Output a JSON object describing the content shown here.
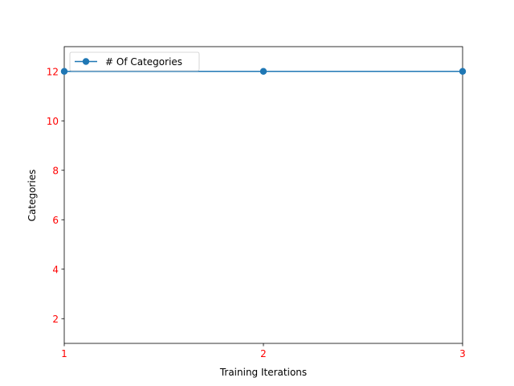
{
  "chart_data": {
    "type": "line",
    "title": "",
    "xlabel": "Training Iterations",
    "ylabel": "Categories",
    "x": [
      1,
      2,
      3
    ],
    "series": [
      {
        "name": "# Of Categories",
        "values": [
          12,
          12,
          12
        ],
        "color": "#1f77b4",
        "marker": "circle"
      }
    ],
    "xlim": [
      1,
      3
    ],
    "ylim": [
      1,
      13
    ],
    "xticks": [
      "1",
      "2",
      "3"
    ],
    "yticks": [
      "2",
      "4",
      "6",
      "8",
      "10",
      "12"
    ],
    "tick_label_color": "#ff0000",
    "grid": false,
    "legend_position": "upper-left"
  }
}
